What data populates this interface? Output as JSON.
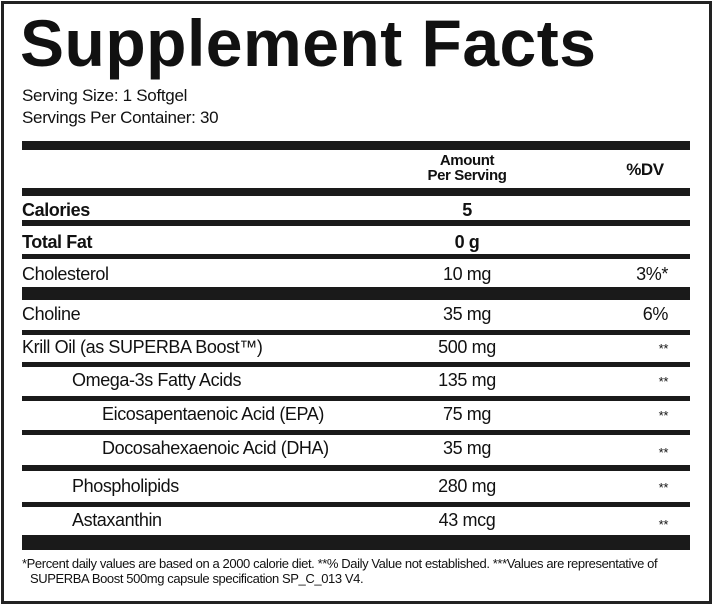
{
  "title": "Supplement Facts",
  "serving_size": "Serving Size: 1 Softgel",
  "servings_per_container": "Servings Per Container: 30",
  "header": {
    "amount": "Amount",
    "per_serving": "Per Serving",
    "dv": "%DV"
  },
  "rows": [
    {
      "label": "Calories",
      "amount": "5",
      "dv": ""
    },
    {
      "label": "Total Fat",
      "amount": "0 g",
      "dv": ""
    },
    {
      "label": "Cholesterol",
      "amount": "10 mg",
      "dv": "3%*"
    },
    {
      "label": "Choline",
      "amount": "35 mg",
      "dv": "6%"
    },
    {
      "label": "Krill Oil (as SUPERBA Boost™)",
      "amount": "500 mg",
      "dv": "**"
    },
    {
      "label": "Omega-3s Fatty Acids",
      "amount": "135 mg",
      "dv": "**"
    },
    {
      "label": "Eicosapentaenoic Acid (EPA)",
      "amount": "75 mg",
      "dv": "**"
    },
    {
      "label": "Docosahexaenoic Acid (DHA)",
      "amount": "35 mg",
      "dv": "**"
    },
    {
      "label": "Phospholipids",
      "amount": "280 mg",
      "dv": "**"
    },
    {
      "label": "Astaxanthin",
      "amount": "43 mcg",
      "dv": "**"
    }
  ],
  "footnote": {
    "line1": "*Percent daily values are based on a 2000 calorie diet. **% Daily Value not established. ***Values are representative of",
    "line2": "SUPERBA Boost 500mg capsule specification SP_C_013 V4."
  }
}
